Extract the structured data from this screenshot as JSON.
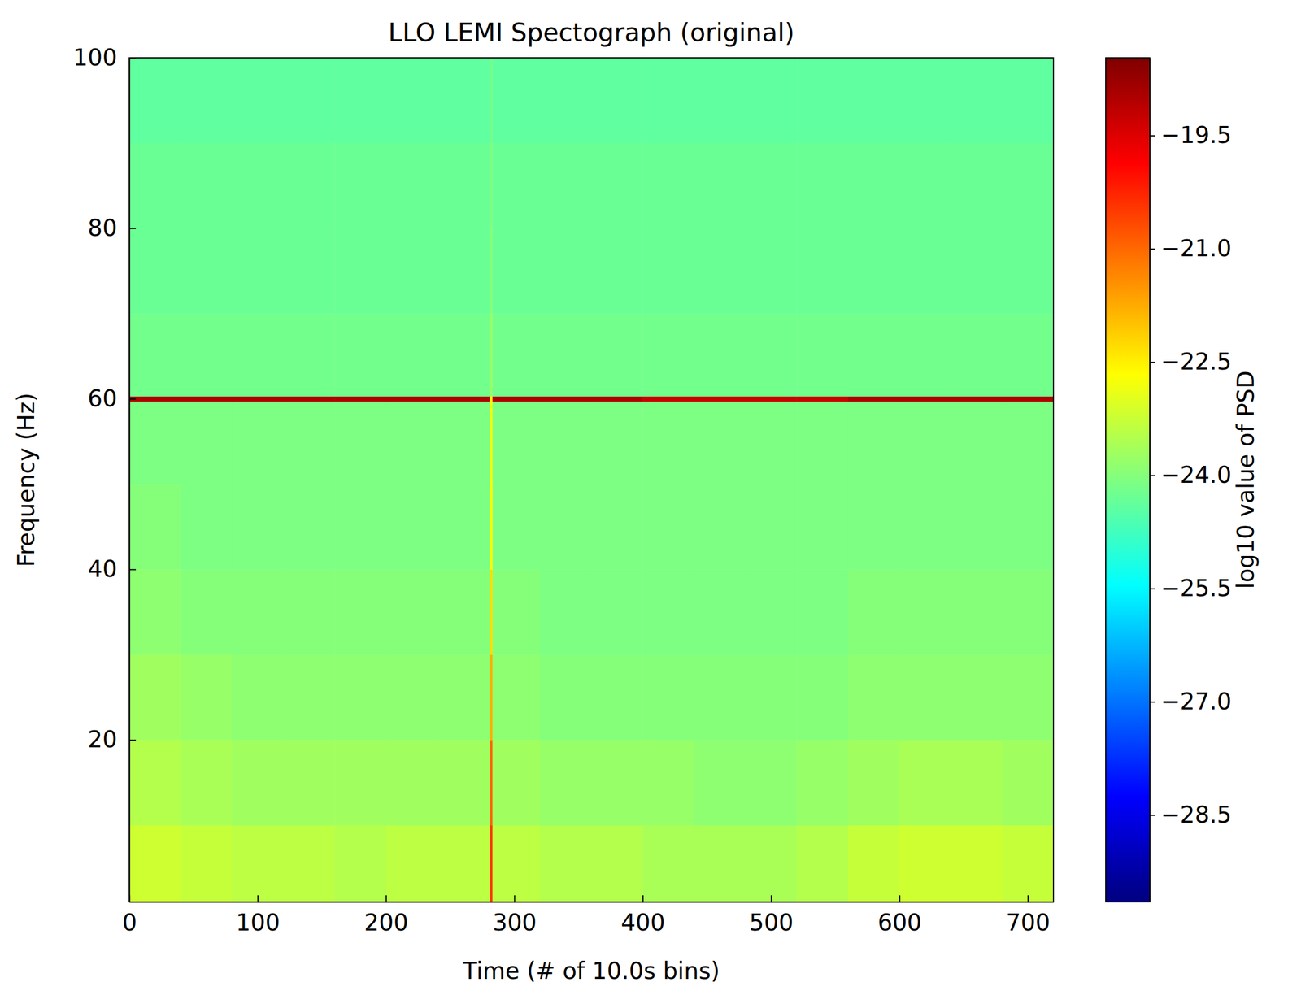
{
  "chart_data": {
    "type": "heatmap",
    "title": "LLO LEMI Spectograph (original)",
    "x_label": "Time (# of 10.0s bins)",
    "y_label": "Frequency (Hz)",
    "xlim": [
      0,
      720
    ],
    "ylim": [
      1,
      100
    ],
    "xticks": [
      0,
      100,
      200,
      300,
      400,
      500,
      600,
      700
    ],
    "yticks": [
      20,
      40,
      60,
      80,
      100
    ],
    "x_edges": [
      0,
      40,
      80,
      120,
      160,
      200,
      240,
      281,
      283,
      320,
      360,
      400,
      440,
      480,
      520,
      560,
      600,
      640,
      680,
      720
    ],
    "y_edges": [
      1,
      10,
      20,
      30,
      40,
      50,
      59.7,
      60.3,
      70,
      80,
      90,
      100
    ],
    "cells": [
      [
        -23.2,
        -23.3,
        -23.4,
        -23.4,
        -23.5,
        -23.4,
        -23.4,
        -20.5,
        -23.4,
        -23.5,
        -23.5,
        -23.6,
        -23.6,
        -23.6,
        -23.5,
        -23.3,
        -23.2,
        -23.2,
        -23.3
      ],
      [
        -23.5,
        -23.6,
        -23.7,
        -23.7,
        -23.7,
        -23.7,
        -23.7,
        -21.0,
        -23.7,
        -23.8,
        -23.8,
        -23.8,
        -23.9,
        -23.9,
        -23.8,
        -23.7,
        -23.6,
        -23.6,
        -23.7
      ],
      [
        -23.7,
        -23.8,
        -23.9,
        -23.9,
        -23.9,
        -23.9,
        -23.9,
        -21.8,
        -23.9,
        -24.0,
        -24.0,
        -24.0,
        -24.0,
        -24.0,
        -24.0,
        -23.9,
        -23.9,
        -23.9,
        -23.9
      ],
      [
        -23.9,
        -24.0,
        -24.0,
        -24.0,
        -24.0,
        -24.0,
        -24.0,
        -22.3,
        -24.0,
        -24.1,
        -24.1,
        -24.1,
        -24.1,
        -24.1,
        -24.1,
        -24.0,
        -24.0,
        -24.0,
        -24.0
      ],
      [
        -24.0,
        -24.1,
        -24.1,
        -24.1,
        -24.1,
        -24.1,
        -24.1,
        -22.6,
        -24.1,
        -24.1,
        -24.1,
        -24.1,
        -24.1,
        -24.1,
        -24.1,
        -24.1,
        -24.1,
        -24.1,
        -24.1
      ],
      [
        -24.1,
        -24.1,
        -24.1,
        -24.1,
        -24.1,
        -24.1,
        -24.1,
        -22.8,
        -24.1,
        -24.1,
        -24.1,
        -24.1,
        -24.1,
        -24.1,
        -24.1,
        -24.1,
        -24.1,
        -24.1,
        -24.1
      ],
      [
        -19.0,
        -19.0,
        -19.0,
        -19.0,
        -19.0,
        -19.0,
        -19.0,
        -22.5,
        -19.0,
        -19.0,
        -19.0,
        -19.3,
        -19.3,
        -19.3,
        -19.3,
        -19.0,
        -19.0,
        -19.0,
        -19.0
      ],
      [
        -24.2,
        -24.2,
        -24.2,
        -24.2,
        -24.2,
        -24.2,
        -24.2,
        -23.8,
        -24.2,
        -24.2,
        -24.2,
        -24.2,
        -24.2,
        -24.2,
        -24.2,
        -24.2,
        -24.2,
        -24.2,
        -24.2
      ],
      [
        -24.3,
        -24.3,
        -24.3,
        -24.3,
        -24.3,
        -24.3,
        -24.3,
        -24.0,
        -24.3,
        -24.3,
        -24.3,
        -24.3,
        -24.3,
        -24.3,
        -24.3,
        -24.3,
        -24.3,
        -24.3,
        -24.3
      ],
      [
        -24.3,
        -24.3,
        -24.3,
        -24.3,
        -24.3,
        -24.3,
        -24.3,
        -24.1,
        -24.3,
        -24.3,
        -24.3,
        -24.3,
        -24.3,
        -24.3,
        -24.3,
        -24.3,
        -24.3,
        -24.3,
        -24.3
      ],
      [
        -24.4,
        -24.4,
        -24.4,
        -24.4,
        -24.4,
        -24.4,
        -24.4,
        -24.2,
        -24.4,
        -24.4,
        -24.4,
        -24.4,
        -24.4,
        -24.4,
        -24.4,
        -24.4,
        -24.4,
        -24.4,
        -24.4
      ]
    ],
    "colorbar": {
      "label": "log10 value of PSD",
      "range": [
        -29.65,
        -18.47
      ],
      "ticks": [
        {
          "value": -19.5,
          "label": "−19.5"
        },
        {
          "value": -21.0,
          "label": "−21.0"
        },
        {
          "value": -22.5,
          "label": "−22.5"
        },
        {
          "value": -24.0,
          "label": "−24.0"
        },
        {
          "value": -25.5,
          "label": "−25.5"
        },
        {
          "value": -27.0,
          "label": "−27.0"
        },
        {
          "value": -28.5,
          "label": "−28.5"
        }
      ]
    }
  }
}
